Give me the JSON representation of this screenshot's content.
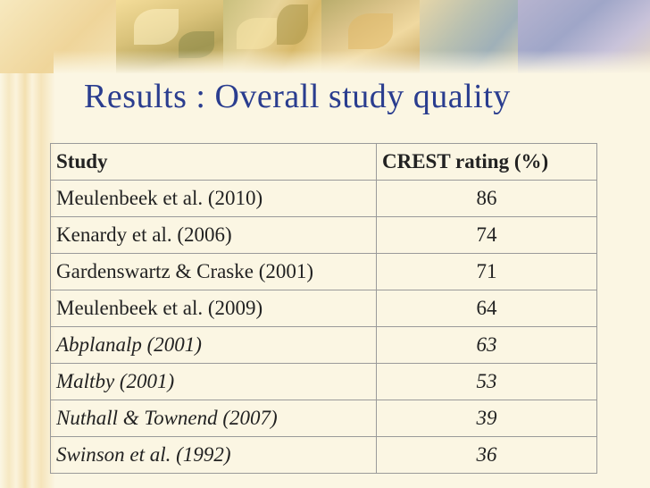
{
  "slide": {
    "title": "Results : Overall study quality"
  },
  "table": {
    "headers": {
      "study": "Study",
      "rating": "CREST rating (%)"
    },
    "rows": [
      {
        "study": "Meulenbeek et al. (2010)",
        "rating": "86",
        "italic": false
      },
      {
        "study": "Kenardy et al. (2006)",
        "rating": "74",
        "italic": false
      },
      {
        "study": "Gardenswartz & Craske (2001)",
        "rating": "71",
        "italic": false
      },
      {
        "study": "Meulenbeek et al. (2009)",
        "rating": "64",
        "italic": false
      },
      {
        "study": "Abplanalp (2001)",
        "rating": "63",
        "italic": true
      },
      {
        "study": "Maltby (2001)",
        "rating": "53",
        "italic": true
      },
      {
        "study": "Nuthall & Townend (2007)",
        "rating": "39",
        "italic": true
      },
      {
        "study": "Swinson et al. (1992)",
        "rating": "36",
        "italic": true
      }
    ]
  },
  "colors": {
    "background": "#fbf6e3",
    "title": "#2a3d8f",
    "text": "#222222",
    "grid": "#9a9a9a"
  }
}
